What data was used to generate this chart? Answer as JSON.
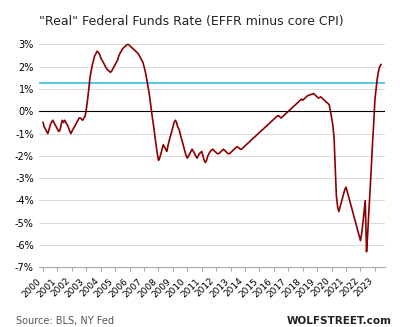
{
  "title": "\"Real\" Federal Funds Rate (EFFR minus core CPI)",
  "source_left": "Source: BLS, NY Fed",
  "source_right": "WOLFSTREET.com",
  "ylim": [
    -7,
    3.5
  ],
  "yticks": [
    -7,
    -6,
    -5,
    -4,
    -3,
    -2,
    -1,
    0,
    1,
    2,
    3
  ],
  "ytick_labels": [
    "-7%",
    "-6%",
    "-5%",
    "-4%",
    "-3%",
    "-2%",
    "-1%",
    "0%",
    "1%",
    "2%",
    "3%"
  ],
  "hline_y": 1.25,
  "hline_color": "#5BC8E8",
  "line_color": "#8B0000",
  "bg_color": "#FFFFFF",
  "zero_line_color": "#000000",
  "years": [
    2000,
    2001,
    2002,
    2003,
    2004,
    2005,
    2006,
    2007,
    2008,
    2009,
    2010,
    2011,
    2012,
    2013,
    2014,
    2015,
    2016,
    2017,
    2018,
    2019,
    2020,
    2021,
    2022,
    2023
  ],
  "data": [
    [
      2000.0,
      -0.5
    ],
    [
      2000.08,
      -0.7
    ],
    [
      2000.17,
      -0.8
    ],
    [
      2000.25,
      -0.9
    ],
    [
      2000.33,
      -1.0
    ],
    [
      2000.42,
      -0.8
    ],
    [
      2000.5,
      -0.6
    ],
    [
      2000.58,
      -0.5
    ],
    [
      2000.67,
      -0.4
    ],
    [
      2000.75,
      -0.5
    ],
    [
      2000.83,
      -0.6
    ],
    [
      2000.92,
      -0.7
    ],
    [
      2001.0,
      -0.8
    ],
    [
      2001.08,
      -0.9
    ],
    [
      2001.17,
      -0.85
    ],
    [
      2001.25,
      -0.6
    ],
    [
      2001.33,
      -0.4
    ],
    [
      2001.42,
      -0.5
    ],
    [
      2001.5,
      -0.4
    ],
    [
      2001.58,
      -0.5
    ],
    [
      2001.67,
      -0.6
    ],
    [
      2001.75,
      -0.7
    ],
    [
      2001.83,
      -0.85
    ],
    [
      2001.92,
      -1.0
    ],
    [
      2002.0,
      -0.9
    ],
    [
      2002.08,
      -0.8
    ],
    [
      2002.17,
      -0.7
    ],
    [
      2002.25,
      -0.6
    ],
    [
      2002.33,
      -0.5
    ],
    [
      2002.42,
      -0.4
    ],
    [
      2002.5,
      -0.3
    ],
    [
      2002.58,
      -0.3
    ],
    [
      2002.67,
      -0.35
    ],
    [
      2002.75,
      -0.4
    ],
    [
      2002.83,
      -0.3
    ],
    [
      2002.92,
      -0.2
    ],
    [
      2003.0,
      0.1
    ],
    [
      2003.08,
      0.5
    ],
    [
      2003.17,
      1.0
    ],
    [
      2003.25,
      1.5
    ],
    [
      2003.33,
      1.8
    ],
    [
      2003.42,
      2.1
    ],
    [
      2003.5,
      2.3
    ],
    [
      2003.58,
      2.5
    ],
    [
      2003.67,
      2.6
    ],
    [
      2003.75,
      2.7
    ],
    [
      2003.83,
      2.65
    ],
    [
      2003.92,
      2.55
    ],
    [
      2004.0,
      2.4
    ],
    [
      2004.08,
      2.3
    ],
    [
      2004.17,
      2.2
    ],
    [
      2004.25,
      2.1
    ],
    [
      2004.33,
      2.0
    ],
    [
      2004.42,
      1.9
    ],
    [
      2004.5,
      1.85
    ],
    [
      2004.58,
      1.8
    ],
    [
      2004.67,
      1.75
    ],
    [
      2004.75,
      1.8
    ],
    [
      2004.83,
      1.9
    ],
    [
      2004.92,
      2.0
    ],
    [
      2005.0,
      2.1
    ],
    [
      2005.08,
      2.2
    ],
    [
      2005.17,
      2.3
    ],
    [
      2005.25,
      2.5
    ],
    [
      2005.33,
      2.6
    ],
    [
      2005.42,
      2.7
    ],
    [
      2005.5,
      2.8
    ],
    [
      2005.58,
      2.85
    ],
    [
      2005.67,
      2.9
    ],
    [
      2005.75,
      2.95
    ],
    [
      2005.83,
      3.0
    ],
    [
      2005.92,
      3.0
    ],
    [
      2006.0,
      2.95
    ],
    [
      2006.08,
      2.9
    ],
    [
      2006.17,
      2.85
    ],
    [
      2006.25,
      2.8
    ],
    [
      2006.33,
      2.75
    ],
    [
      2006.42,
      2.7
    ],
    [
      2006.5,
      2.65
    ],
    [
      2006.58,
      2.6
    ],
    [
      2006.67,
      2.5
    ],
    [
      2006.75,
      2.4
    ],
    [
      2006.83,
      2.3
    ],
    [
      2006.92,
      2.2
    ],
    [
      2007.0,
      2.0
    ],
    [
      2007.08,
      1.8
    ],
    [
      2007.17,
      1.5
    ],
    [
      2007.25,
      1.2
    ],
    [
      2007.33,
      0.9
    ],
    [
      2007.42,
      0.5
    ],
    [
      2007.5,
      0.1
    ],
    [
      2007.58,
      -0.3
    ],
    [
      2007.67,
      -0.7
    ],
    [
      2007.75,
      -1.1
    ],
    [
      2007.83,
      -1.5
    ],
    [
      2007.92,
      -1.9
    ],
    [
      2008.0,
      -2.2
    ],
    [
      2008.08,
      -2.1
    ],
    [
      2008.17,
      -1.9
    ],
    [
      2008.25,
      -1.7
    ],
    [
      2008.33,
      -1.5
    ],
    [
      2008.42,
      -1.6
    ],
    [
      2008.5,
      -1.7
    ],
    [
      2008.58,
      -1.8
    ],
    [
      2008.67,
      -1.5
    ],
    [
      2008.75,
      -1.3
    ],
    [
      2008.83,
      -1.1
    ],
    [
      2008.92,
      -0.9
    ],
    [
      2009.0,
      -0.7
    ],
    [
      2009.08,
      -0.5
    ],
    [
      2009.17,
      -0.4
    ],
    [
      2009.25,
      -0.5
    ],
    [
      2009.33,
      -0.7
    ],
    [
      2009.42,
      -0.8
    ],
    [
      2009.5,
      -1.0
    ],
    [
      2009.58,
      -1.2
    ],
    [
      2009.67,
      -1.4
    ],
    [
      2009.75,
      -1.6
    ],
    [
      2009.83,
      -1.8
    ],
    [
      2009.92,
      -2.0
    ],
    [
      2010.0,
      -2.1
    ],
    [
      2010.08,
      -2.0
    ],
    [
      2010.17,
      -1.9
    ],
    [
      2010.25,
      -1.8
    ],
    [
      2010.33,
      -1.7
    ],
    [
      2010.42,
      -1.8
    ],
    [
      2010.5,
      -1.9
    ],
    [
      2010.58,
      -2.0
    ],
    [
      2010.67,
      -2.1
    ],
    [
      2010.75,
      -2.0
    ],
    [
      2010.83,
      -1.9
    ],
    [
      2010.92,
      -1.85
    ],
    [
      2011.0,
      -1.8
    ],
    [
      2011.08,
      -2.0
    ],
    [
      2011.17,
      -2.2
    ],
    [
      2011.25,
      -2.3
    ],
    [
      2011.33,
      -2.2
    ],
    [
      2011.42,
      -2.0
    ],
    [
      2011.5,
      -1.9
    ],
    [
      2011.58,
      -1.8
    ],
    [
      2011.67,
      -1.75
    ],
    [
      2011.75,
      -1.7
    ],
    [
      2011.83,
      -1.75
    ],
    [
      2011.92,
      -1.8
    ],
    [
      2012.0,
      -1.85
    ],
    [
      2012.08,
      -1.9
    ],
    [
      2012.17,
      -1.9
    ],
    [
      2012.25,
      -1.85
    ],
    [
      2012.33,
      -1.8
    ],
    [
      2012.42,
      -1.75
    ],
    [
      2012.5,
      -1.7
    ],
    [
      2012.58,
      -1.75
    ],
    [
      2012.67,
      -1.8
    ],
    [
      2012.75,
      -1.85
    ],
    [
      2012.83,
      -1.9
    ],
    [
      2012.92,
      -1.9
    ],
    [
      2013.0,
      -1.85
    ],
    [
      2013.08,
      -1.8
    ],
    [
      2013.17,
      -1.75
    ],
    [
      2013.25,
      -1.7
    ],
    [
      2013.33,
      -1.65
    ],
    [
      2013.42,
      -1.6
    ],
    [
      2013.5,
      -1.6
    ],
    [
      2013.58,
      -1.65
    ],
    [
      2013.67,
      -1.7
    ],
    [
      2013.75,
      -1.7
    ],
    [
      2013.83,
      -1.65
    ],
    [
      2013.92,
      -1.6
    ],
    [
      2014.0,
      -1.55
    ],
    [
      2014.08,
      -1.5
    ],
    [
      2014.17,
      -1.45
    ],
    [
      2014.25,
      -1.4
    ],
    [
      2014.33,
      -1.35
    ],
    [
      2014.42,
      -1.3
    ],
    [
      2014.5,
      -1.25
    ],
    [
      2014.58,
      -1.2
    ],
    [
      2014.67,
      -1.15
    ],
    [
      2014.75,
      -1.1
    ],
    [
      2014.83,
      -1.05
    ],
    [
      2014.92,
      -1.0
    ],
    [
      2015.0,
      -0.95
    ],
    [
      2015.08,
      -0.9
    ],
    [
      2015.17,
      -0.85
    ],
    [
      2015.25,
      -0.8
    ],
    [
      2015.33,
      -0.75
    ],
    [
      2015.42,
      -0.7
    ],
    [
      2015.5,
      -0.65
    ],
    [
      2015.58,
      -0.6
    ],
    [
      2015.67,
      -0.55
    ],
    [
      2015.75,
      -0.5
    ],
    [
      2015.83,
      -0.45
    ],
    [
      2015.92,
      -0.4
    ],
    [
      2016.0,
      -0.35
    ],
    [
      2016.08,
      -0.3
    ],
    [
      2016.17,
      -0.25
    ],
    [
      2016.25,
      -0.2
    ],
    [
      2016.33,
      -0.2
    ],
    [
      2016.42,
      -0.25
    ],
    [
      2016.5,
      -0.3
    ],
    [
      2016.58,
      -0.25
    ],
    [
      2016.67,
      -0.2
    ],
    [
      2016.75,
      -0.15
    ],
    [
      2016.83,
      -0.1
    ],
    [
      2016.92,
      -0.05
    ],
    [
      2017.0,
      0.0
    ],
    [
      2017.08,
      0.05
    ],
    [
      2017.17,
      0.1
    ],
    [
      2017.25,
      0.15
    ],
    [
      2017.33,
      0.2
    ],
    [
      2017.42,
      0.25
    ],
    [
      2017.5,
      0.3
    ],
    [
      2017.58,
      0.35
    ],
    [
      2017.67,
      0.4
    ],
    [
      2017.75,
      0.45
    ],
    [
      2017.83,
      0.5
    ],
    [
      2017.92,
      0.55
    ],
    [
      2018.0,
      0.5
    ],
    [
      2018.08,
      0.55
    ],
    [
      2018.17,
      0.6
    ],
    [
      2018.25,
      0.65
    ],
    [
      2018.33,
      0.7
    ],
    [
      2018.42,
      0.72
    ],
    [
      2018.5,
      0.74
    ],
    [
      2018.58,
      0.76
    ],
    [
      2018.67,
      0.78
    ],
    [
      2018.75,
      0.8
    ],
    [
      2018.83,
      0.75
    ],
    [
      2018.92,
      0.7
    ],
    [
      2019.0,
      0.65
    ],
    [
      2019.08,
      0.6
    ],
    [
      2019.17,
      0.62
    ],
    [
      2019.25,
      0.65
    ],
    [
      2019.33,
      0.6
    ],
    [
      2019.42,
      0.55
    ],
    [
      2019.5,
      0.5
    ],
    [
      2019.58,
      0.45
    ],
    [
      2019.67,
      0.4
    ],
    [
      2019.75,
      0.35
    ],
    [
      2019.83,
      0.3
    ],
    [
      2019.92,
      0.0
    ],
    [
      2020.0,
      -0.3
    ],
    [
      2020.08,
      -0.6
    ],
    [
      2020.17,
      -1.2
    ],
    [
      2020.25,
      -2.5
    ],
    [
      2020.33,
      -3.8
    ],
    [
      2020.42,
      -4.3
    ],
    [
      2020.5,
      -4.5
    ],
    [
      2020.58,
      -4.3
    ],
    [
      2020.67,
      -4.1
    ],
    [
      2020.75,
      -3.9
    ],
    [
      2020.83,
      -3.7
    ],
    [
      2020.92,
      -3.5
    ],
    [
      2021.0,
      -3.4
    ],
    [
      2021.08,
      -3.6
    ],
    [
      2021.17,
      -3.8
    ],
    [
      2021.25,
      -4.0
    ],
    [
      2021.33,
      -4.2
    ],
    [
      2021.42,
      -4.4
    ],
    [
      2021.5,
      -4.6
    ],
    [
      2021.58,
      -4.8
    ],
    [
      2021.67,
      -5.0
    ],
    [
      2021.75,
      -5.2
    ],
    [
      2021.83,
      -5.4
    ],
    [
      2021.92,
      -5.6
    ],
    [
      2022.0,
      -5.8
    ],
    [
      2022.08,
      -5.5
    ],
    [
      2022.17,
      -5.0
    ],
    [
      2022.25,
      -4.5
    ],
    [
      2022.33,
      -4.0
    ],
    [
      2022.42,
      -6.3
    ],
    [
      2022.5,
      -5.5
    ],
    [
      2022.58,
      -4.5
    ],
    [
      2022.67,
      -3.5
    ],
    [
      2022.75,
      -2.5
    ],
    [
      2022.83,
      -1.5
    ],
    [
      2022.92,
      -0.5
    ],
    [
      2023.0,
      0.5
    ],
    [
      2023.08,
      1.0
    ],
    [
      2023.17,
      1.5
    ],
    [
      2023.25,
      1.8
    ],
    [
      2023.33,
      2.0
    ],
    [
      2023.42,
      2.1
    ]
  ]
}
